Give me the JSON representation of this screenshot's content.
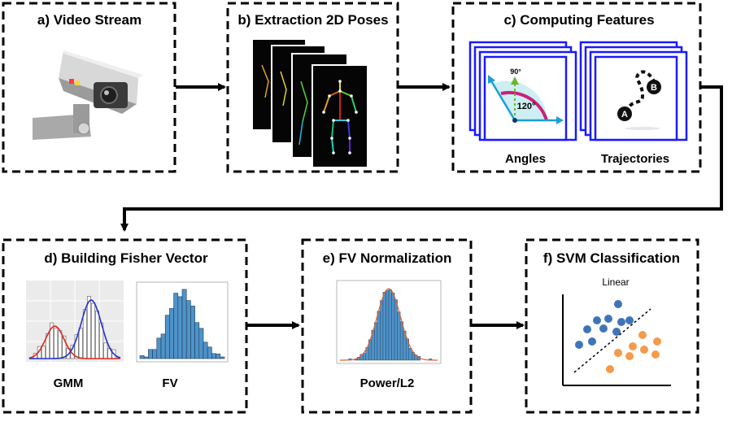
{
  "steps": [
    {
      "title": "a) Video Stream"
    },
    {
      "title": "b) Extraction 2D Poses"
    },
    {
      "title": "c) Computing Features",
      "angles_label": "Angles",
      "trajectories_label": "Trajectories",
      "angle_90": "90°",
      "angle_120": "120°",
      "point_a": "A",
      "point_b": "B"
    },
    {
      "title": "d) Building Fisher Vector",
      "gmm_label": "GMM",
      "fv_label": "FV"
    },
    {
      "title": "e) FV Normalization",
      "norm_label": "Power/L2"
    },
    {
      "title": "f) SVM Classification",
      "linear_label": "Linear"
    }
  ],
  "colors": {
    "border": "#000000",
    "frame_blue": "#1a1aff",
    "hist_blue": "#4f93c9",
    "gmm_red": "#e0261e",
    "gmm_blue": "#2430c8",
    "svm_blue": "#3f75b8",
    "svm_orange": "#f59a4a",
    "angle_fill": "#cdeef2",
    "angle_arc": "#cc1f7a",
    "angle_vec": "#1a9fd8",
    "angle_up": "#6ab52e"
  },
  "icons": [
    "security-camera-icon",
    "pose-skeleton-icon",
    "angle-icon",
    "trajectory-icon",
    "histogram-icon",
    "scatter-icon"
  ]
}
